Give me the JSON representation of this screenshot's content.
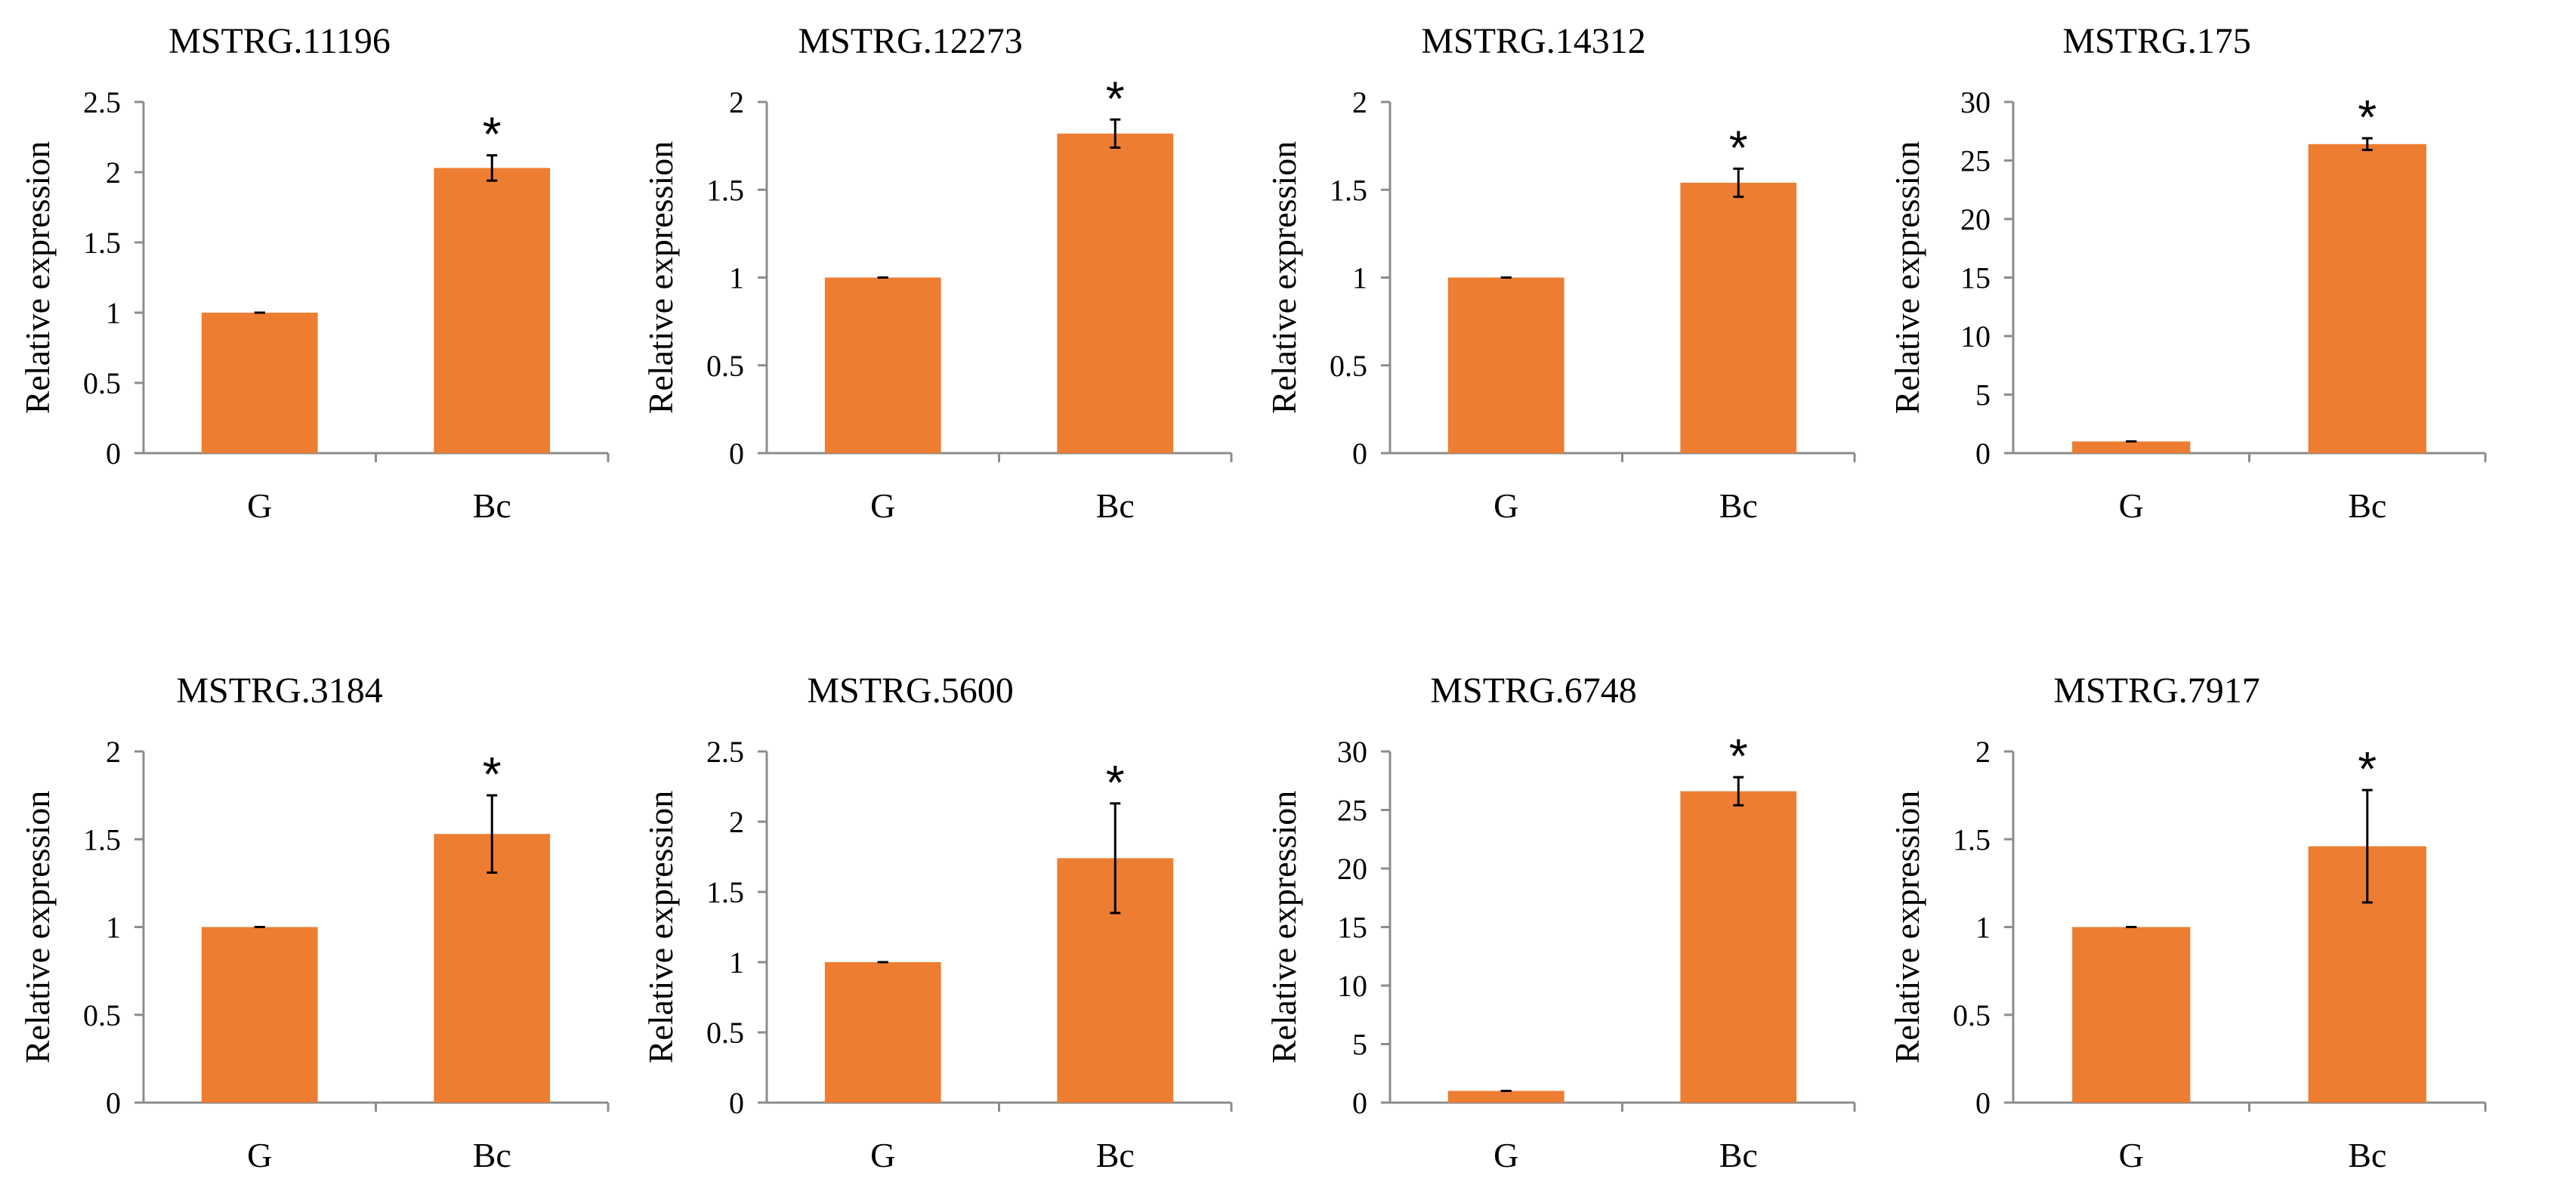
{
  "colors": {
    "bar": "#ED7D31",
    "axis": "#8C8C8C",
    "text": "#000000",
    "background": "#FFFFFF"
  },
  "chart_data": [
    {
      "type": "bar",
      "title": "MSTRG.11196",
      "ylabel": "Relative expression",
      "xlabel": "",
      "categories": [
        "G",
        "Bc"
      ],
      "values": [
        1.0,
        2.03
      ],
      "errors": [
        0.0,
        0.09
      ],
      "significance": [
        "",
        "*"
      ],
      "ylim": [
        0,
        2.5
      ],
      "yticks": [
        0,
        0.5,
        1,
        1.5,
        2,
        2.5
      ],
      "ytick_labels": [
        "0",
        "0.5",
        "1",
        "1.5",
        "2",
        "2.5"
      ]
    },
    {
      "type": "bar",
      "title": "MSTRG.12273",
      "ylabel": "Relative expression",
      "xlabel": "",
      "categories": [
        "G",
        "Bc"
      ],
      "values": [
        1.0,
        1.82
      ],
      "errors": [
        0.0,
        0.08
      ],
      "significance": [
        "",
        "*"
      ],
      "ylim": [
        0,
        2
      ],
      "yticks": [
        0,
        0.5,
        1,
        1.5,
        2
      ],
      "ytick_labels": [
        "0",
        "0.5",
        "1",
        "1.5",
        "2"
      ]
    },
    {
      "type": "bar",
      "title": "MSTRG.14312",
      "ylabel": "Relative expression",
      "xlabel": "",
      "categories": [
        "G",
        "Bc"
      ],
      "values": [
        1.0,
        1.54
      ],
      "errors": [
        0.0,
        0.08
      ],
      "significance": [
        "",
        "*"
      ],
      "ylim": [
        0,
        2
      ],
      "yticks": [
        0,
        0.5,
        1,
        1.5,
        2
      ],
      "ytick_labels": [
        "0",
        "0.5",
        "1",
        "1.5",
        "2"
      ]
    },
    {
      "type": "bar",
      "title": "MSTRG.175",
      "ylabel": "Relative expression",
      "xlabel": "",
      "categories": [
        "G",
        "Bc"
      ],
      "values": [
        1.0,
        26.4
      ],
      "errors": [
        0.0,
        0.5
      ],
      "significance": [
        "",
        "*"
      ],
      "ylim": [
        0,
        30
      ],
      "yticks": [
        0,
        5,
        10,
        15,
        20,
        25,
        30
      ],
      "ytick_labels": [
        "0",
        "5",
        "10",
        "15",
        "20",
        "25",
        "30"
      ]
    },
    {
      "type": "bar",
      "title": "MSTRG.3184",
      "ylabel": "Relative expression",
      "xlabel": "",
      "categories": [
        "G",
        "Bc"
      ],
      "values": [
        1.0,
        1.53
      ],
      "errors": [
        0.0,
        0.22
      ],
      "significance": [
        "",
        "*"
      ],
      "ylim": [
        0,
        2
      ],
      "yticks": [
        0,
        0.5,
        1,
        1.5,
        2
      ],
      "ytick_labels": [
        "0",
        "0.5",
        "1",
        "1.5",
        "2"
      ]
    },
    {
      "type": "bar",
      "title": "MSTRG.5600",
      "ylabel": "Relative expression",
      "xlabel": "",
      "categories": [
        "G",
        "Bc"
      ],
      "values": [
        1.0,
        1.74
      ],
      "errors": [
        0.0,
        0.39
      ],
      "significance": [
        "",
        "*"
      ],
      "ylim": [
        0,
        2.5
      ],
      "yticks": [
        0,
        0.5,
        1,
        1.5,
        2,
        2.5
      ],
      "ytick_labels": [
        "0",
        "0.5",
        "1",
        "1.5",
        "2",
        "2.5"
      ]
    },
    {
      "type": "bar",
      "title": "MSTRG.6748",
      "ylabel": "Relative expression",
      "xlabel": "",
      "categories": [
        "G",
        "Bc"
      ],
      "values": [
        1.0,
        26.6
      ],
      "errors": [
        0.0,
        1.2
      ],
      "significance": [
        "",
        "*"
      ],
      "ylim": [
        0,
        30
      ],
      "yticks": [
        0,
        5,
        10,
        15,
        20,
        25,
        30
      ],
      "ytick_labels": [
        "0",
        "5",
        "10",
        "15",
        "20",
        "25",
        "30"
      ]
    },
    {
      "type": "bar",
      "title": "MSTRG.7917",
      "ylabel": "Relative expression",
      "xlabel": "",
      "categories": [
        "G",
        "Bc"
      ],
      "values": [
        1.0,
        1.46
      ],
      "errors": [
        0.0,
        0.32
      ],
      "significance": [
        "",
        "*"
      ],
      "ylim": [
        0,
        2
      ],
      "yticks": [
        0,
        0.5,
        1,
        1.5,
        2
      ],
      "ytick_labels": [
        "0",
        "0.5",
        "1",
        "1.5",
        "2"
      ]
    }
  ]
}
